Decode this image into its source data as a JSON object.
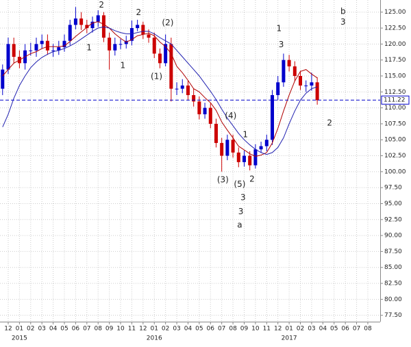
{
  "chart_data": {
    "type": "candlestick",
    "x": [
      -0.5,
      0,
      0.5,
      1,
      1.5,
      2,
      2.5,
      3,
      3.5,
      4,
      4.5,
      5,
      5.5,
      6,
      6.5,
      7,
      7.5,
      8,
      8.5,
      9,
      9.5,
      10,
      10.5,
      11,
      11.5,
      12,
      12.5,
      13,
      13.5,
      14,
      14.5,
      15,
      15.5,
      16,
      16.5,
      17,
      17.5,
      18,
      18.5,
      19,
      19.5,
      20,
      20.5,
      21,
      21.5,
      22,
      22.5,
      23,
      23.5,
      24,
      24.5,
      25,
      25.5,
      26,
      26.5,
      27,
      27.5
    ],
    "open": [
      113,
      116,
      120,
      118,
      117,
      119,
      119,
      120,
      120.5,
      119,
      119,
      119.5,
      120.5,
      123,
      124,
      123,
      122.5,
      123.5,
      124.5,
      121,
      119,
      120,
      120,
      120.5,
      122.5,
      123,
      121.5,
      121,
      118.5,
      117,
      120,
      113,
      113,
      113.5,
      112,
      111,
      109,
      110,
      107.5,
      104.5,
      102.5,
      105,
      103,
      101.5,
      102.5,
      101,
      103.5,
      104,
      105,
      112,
      114,
      117.5,
      116.5,
      115,
      113.5,
      113.5,
      114
    ],
    "high": [
      116.8,
      121,
      121,
      119,
      120,
      120.2,
      121,
      121.5,
      121.5,
      120,
      120.5,
      121.5,
      123.8,
      125.8,
      125,
      123.8,
      124.3,
      125.3,
      125,
      121.8,
      121,
      120.8,
      121.3,
      123.7,
      123.8,
      123.5,
      122.3,
      121.8,
      119.3,
      121.5,
      121,
      114,
      114.5,
      114.3,
      113,
      111.8,
      110.8,
      110.7,
      108.3,
      105.3,
      105.8,
      105.8,
      103.8,
      103.3,
      103.2,
      104.3,
      104.7,
      105.8,
      112.8,
      115,
      118.5,
      118.3,
      117.3,
      115.8,
      114.3,
      115.5,
      114.8
    ],
    "low": [
      112,
      115.3,
      117,
      116.2,
      116,
      118.2,
      118,
      119.3,
      118.3,
      118,
      118.3,
      118.8,
      119.8,
      122.3,
      122.2,
      121.7,
      121.8,
      122.7,
      120.3,
      116,
      118.2,
      119.2,
      119.3,
      119.8,
      122,
      120.8,
      120.2,
      117.8,
      116.2,
      116.5,
      111,
      112,
      112.3,
      111.2,
      110.2,
      108.2,
      108.3,
      106.8,
      103.8,
      100,
      101.8,
      102.2,
      100.7,
      100.8,
      100.2,
      100.5,
      103,
      103.2,
      104.2,
      111.2,
      113.3,
      115.7,
      114.2,
      112.8,
      112.5,
      112.7,
      110.5
    ],
    "close": [
      116,
      120,
      118,
      117,
      119,
      119,
      120,
      120.5,
      119,
      119,
      119.5,
      120.5,
      123,
      124,
      123,
      122.5,
      123.5,
      124.5,
      121,
      119,
      120,
      120,
      120.5,
      122.5,
      123,
      121.5,
      121,
      118.5,
      117,
      120,
      113,
      113,
      113.5,
      112,
      111,
      109,
      110,
      107.5,
      104.5,
      102.5,
      105,
      103,
      101.5,
      102.5,
      101,
      103.5,
      104,
      105,
      112,
      114,
      117.5,
      116.5,
      115,
      113.5,
      113.5,
      114,
      111.2
    ],
    "up_color": "#0000cc",
    "down_color": "#cc0000",
    "overlays": [
      {
        "color": "#b00000",
        "values": [
          115,
          116,
          117,
          117.5,
          118,
          118.5,
          118.8,
          119.3,
          119.6,
          119.6,
          119.6,
          119.7,
          120.4,
          121.2,
          121.9,
          122.6,
          123.3,
          123.5,
          123.1,
          122.5,
          121.6,
          120.9,
          120.3,
          120.7,
          121.3,
          121.5,
          121.7,
          121.3,
          120.3,
          119.6,
          118.5,
          116.5,
          115.5,
          114.3,
          113,
          112.5,
          111.6,
          110.8,
          109.6,
          107.8,
          106.5,
          105.3,
          104,
          103.4,
          102.8,
          102.4,
          102.6,
          103,
          104.5,
          106.8,
          109.5,
          112,
          114.2,
          115.7,
          116,
          115.3,
          114.7
        ]
      },
      {
        "color": "#2020b0",
        "values": [
          107,
          109,
          111.5,
          113.5,
          115,
          116.3,
          117.2,
          117.9,
          118.4,
          118.8,
          119,
          119.3,
          119.7,
          120.2,
          120.8,
          121.4,
          122,
          122.5,
          122.7,
          122.5,
          122.1,
          121.8,
          121.6,
          121.6,
          121.8,
          122,
          122,
          121.6,
          121,
          120.5,
          120,
          119,
          118,
          117,
          116,
          115,
          113.8,
          112.6,
          111.3,
          109.8,
          108.4,
          107.2,
          106,
          105,
          104.2,
          103.5,
          103,
          102.7,
          103,
          103.8,
          105.3,
          107.5,
          109.5,
          111.2,
          112.3,
          113,
          113.3
        ]
      }
    ],
    "last_price": 111.22,
    "last_price_color": "#0000cc",
    "xlim": [
      -0.73,
      33.1
    ],
    "ylim": [
      76.5,
      126.9
    ],
    "xticks": [
      {
        "value": 0,
        "label": "12"
      },
      {
        "value": 1,
        "label": "01"
      },
      {
        "value": 2,
        "label": "02"
      },
      {
        "value": 3,
        "label": "03"
      },
      {
        "value": 4,
        "label": "04"
      },
      {
        "value": 5,
        "label": "05"
      },
      {
        "value": 6,
        "label": "06"
      },
      {
        "value": 7,
        "label": "07"
      },
      {
        "value": 8,
        "label": "08"
      },
      {
        "value": 9,
        "label": "09"
      },
      {
        "value": 10,
        "label": "10"
      },
      {
        "value": 11,
        "label": "11"
      },
      {
        "value": 12,
        "label": "12"
      },
      {
        "value": 13,
        "label": "01"
      },
      {
        "value": 14,
        "label": "02"
      },
      {
        "value": 15,
        "label": "03"
      },
      {
        "value": 16,
        "label": "04"
      },
      {
        "value": 17,
        "label": "05"
      },
      {
        "value": 18,
        "label": "06"
      },
      {
        "value": 19,
        "label": "07"
      },
      {
        "value": 20,
        "label": "08"
      },
      {
        "value": 21,
        "label": "09"
      },
      {
        "value": 22,
        "label": "10"
      },
      {
        "value": 23,
        "label": "11"
      },
      {
        "value": 24,
        "label": "12"
      },
      {
        "value": 25,
        "label": "01"
      },
      {
        "value": 26,
        "label": "02"
      },
      {
        "value": 27,
        "label": "03"
      },
      {
        "value": 28,
        "label": "04"
      },
      {
        "value": 29,
        "label": "05"
      },
      {
        "value": 30,
        "label": "06"
      },
      {
        "value": 31,
        "label": "07"
      },
      {
        "value": 32,
        "label": "08"
      }
    ],
    "year_labels": [
      {
        "value": 1,
        "label": "2015"
      },
      {
        "value": 13,
        "label": "2016"
      },
      {
        "value": 25,
        "label": "2017"
      }
    ],
    "yticks": [
      {
        "value": 77.5,
        "label": "77.50"
      },
      {
        "value": 80,
        "label": "80.00"
      },
      {
        "value": 82.5,
        "label": "82.50"
      },
      {
        "value": 85,
        "label": "85.00"
      },
      {
        "value": 87.5,
        "label": "87.50"
      },
      {
        "value": 90,
        "label": "90.00"
      },
      {
        "value": 92.5,
        "label": "92.50"
      },
      {
        "value": 95,
        "label": "95.00"
      },
      {
        "value": 97.5,
        "label": "97.50"
      },
      {
        "value": 100,
        "label": "100.00"
      },
      {
        "value": 102.5,
        "label": "102.50"
      },
      {
        "value": 105,
        "label": "105.00"
      },
      {
        "value": 107.5,
        "label": "107.50"
      },
      {
        "value": 110,
        "label": "110.00"
      },
      {
        "value": 112.5,
        "label": "112.50"
      },
      {
        "value": 115,
        "label": "115.00"
      },
      {
        "value": 117.5,
        "label": "117.50"
      },
      {
        "value": 120,
        "label": "120.00"
      },
      {
        "value": 122.5,
        "label": "122.50"
      },
      {
        "value": 125,
        "label": "125.00"
      }
    ],
    "grid": true,
    "annotations": [
      {
        "text": "2",
        "x": 8.3,
        "y": 126.07,
        "color": "#cc0000"
      },
      {
        "text": "1",
        "x": 7.2,
        "y": 119.4,
        "color": "#cc0000"
      },
      {
        "text": "1",
        "x": 24.1,
        "y": 122.4,
        "color": "#cc0000"
      },
      {
        "text": "b",
        "x": 29.8,
        "y": 125.1,
        "color": "#cc0000"
      },
      {
        "text": "3",
        "x": 29.8,
        "y": 123.4,
        "color": "#cc0000"
      },
      {
        "text": "2",
        "x": 28.6,
        "y": 107.6,
        "color": "#cc0000"
      },
      {
        "text": "3",
        "x": 20.7,
        "y": 93.7,
        "color": "#cc0000"
      },
      {
        "text": "a",
        "x": 20.6,
        "y": 91.6,
        "color": "#cc0000"
      },
      {
        "text": "2",
        "x": 11.6,
        "y": 124.9,
        "color": "#7020c0"
      },
      {
        "text": "(2)",
        "x": 14.2,
        "y": 123.3,
        "color": "#7020c0"
      },
      {
        "text": "1",
        "x": 10.2,
        "y": 116.6,
        "color": "#7020c0"
      },
      {
        "text": "(1)",
        "x": 13.2,
        "y": 114.9,
        "color": "#7020c0"
      },
      {
        "text": "3",
        "x": 24.3,
        "y": 119.9,
        "color": "#7020c0"
      },
      {
        "text": "(4)",
        "x": 19.8,
        "y": 108.7,
        "color": "#7020c0"
      },
      {
        "text": "1",
        "x": 21.1,
        "y": 105.8,
        "color": "#7020c0"
      },
      {
        "text": "(3)",
        "x": 19.1,
        "y": 98.7,
        "color": "#7020c0"
      },
      {
        "text": "(5)",
        "x": 20.6,
        "y": 98,
        "color": "#7020c0"
      },
      {
        "text": "2",
        "x": 21.7,
        "y": 98.8,
        "color": "#7020c0"
      },
      {
        "text": "3",
        "x": 20.9,
        "y": 95.9,
        "color": "#7020c0"
      }
    ]
  }
}
